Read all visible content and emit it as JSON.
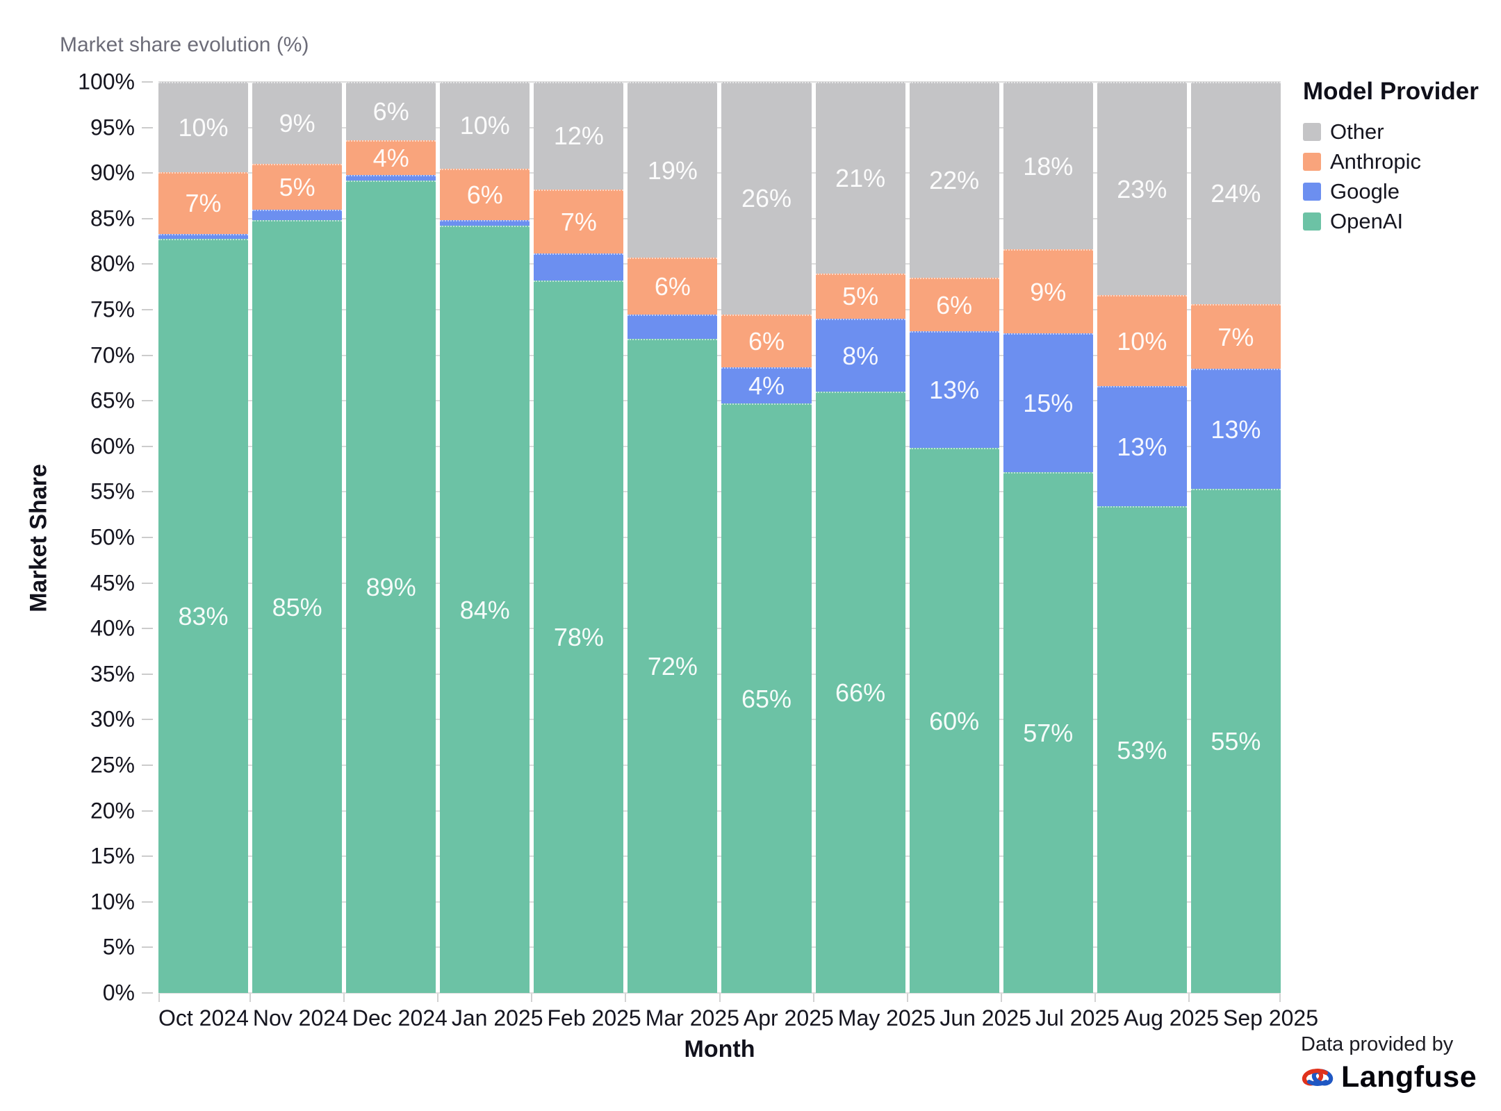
{
  "chart": {
    "title": "Market share evolution (%)",
    "y_axis_title": "Market Share",
    "x_axis_title": "Month"
  },
  "legend": {
    "title": "Model Provider",
    "items": [
      {
        "label": "Other",
        "color": "#c4c4c6"
      },
      {
        "label": "Anthropic",
        "color": "#f9a47c"
      },
      {
        "label": "Google",
        "color": "#6c8ff0"
      },
      {
        "label": "OpenAI",
        "color": "#6cc2a5"
      }
    ]
  },
  "attribution": {
    "prefix": "Data provided by",
    "brand": "Langfuse",
    "logo_icon": "langfuse-knot-logo",
    "logo_colors": {
      "red": "#e0321c",
      "blue": "#1f57c3"
    }
  },
  "chart_data": {
    "type": "bar",
    "stacked": true,
    "title": "Market share evolution (%)",
    "xlabel": "Month",
    "ylabel": "Market Share",
    "ylim": [
      0,
      100
    ],
    "ytick_step": 5,
    "grid": "horizontal",
    "legend_position": "right",
    "categories": [
      "Oct 2024",
      "Nov 2024",
      "Dec 2024",
      "Jan 2025",
      "Feb 2025",
      "Mar 2025",
      "Apr 2025",
      "May 2025",
      "Jun 2025",
      "Jul 2025",
      "Aug 2025",
      "Sep 2025"
    ],
    "y_ticks": [
      "0%",
      "5%",
      "10%",
      "15%",
      "20%",
      "25%",
      "30%",
      "35%",
      "40%",
      "45%",
      "50%",
      "55%",
      "60%",
      "65%",
      "70%",
      "75%",
      "80%",
      "85%",
      "90%",
      "95%",
      "100%"
    ],
    "series": [
      {
        "name": "OpenAI",
        "color": "#6cc2a5",
        "values": [
          82.8,
          84.8,
          89.2,
          84.2,
          78.2,
          71.8,
          64.7,
          66,
          59.8,
          57.2,
          53.4,
          55.3
        ],
        "labels": [
          "83%",
          "85%",
          "89%",
          "84%",
          "78%",
          "72%",
          "65%",
          "66%",
          "60%",
          "57%",
          "53%",
          "55%"
        ]
      },
      {
        "name": "Google",
        "color": "#6c8ff0",
        "values": [
          0.5,
          1.2,
          0.6,
          0.6,
          3.0,
          2.7,
          4.0,
          8,
          12.8,
          15.2,
          13.2,
          13.2
        ],
        "labels": [
          "",
          "",
          "",
          "",
          "",
          "",
          "4%",
          "8%",
          "13%",
          "15%",
          "13%",
          "13%"
        ]
      },
      {
        "name": "Anthropic",
        "color": "#f9a47c",
        "values": [
          6.8,
          5.0,
          3.8,
          5.7,
          7.0,
          6.2,
          5.8,
          5,
          5.9,
          9.2,
          10.0,
          7.1
        ],
        "labels": [
          "7%",
          "5%",
          "4%",
          "6%",
          "7%",
          "6%",
          "6%",
          "5%",
          "6%",
          "9%",
          "10%",
          "7%"
        ]
      },
      {
        "name": "Other",
        "color": "#c4c4c6",
        "values": [
          9.9,
          9.0,
          6.4,
          9.5,
          11.8,
          19.3,
          25.5,
          21,
          21.5,
          18.4,
          23.4,
          24.4
        ],
        "labels": [
          "10%",
          "9%",
          "6%",
          "10%",
          "12%",
          "19%",
          "26%",
          "21%",
          "22%",
          "18%",
          "23%",
          "24%"
        ]
      }
    ]
  }
}
